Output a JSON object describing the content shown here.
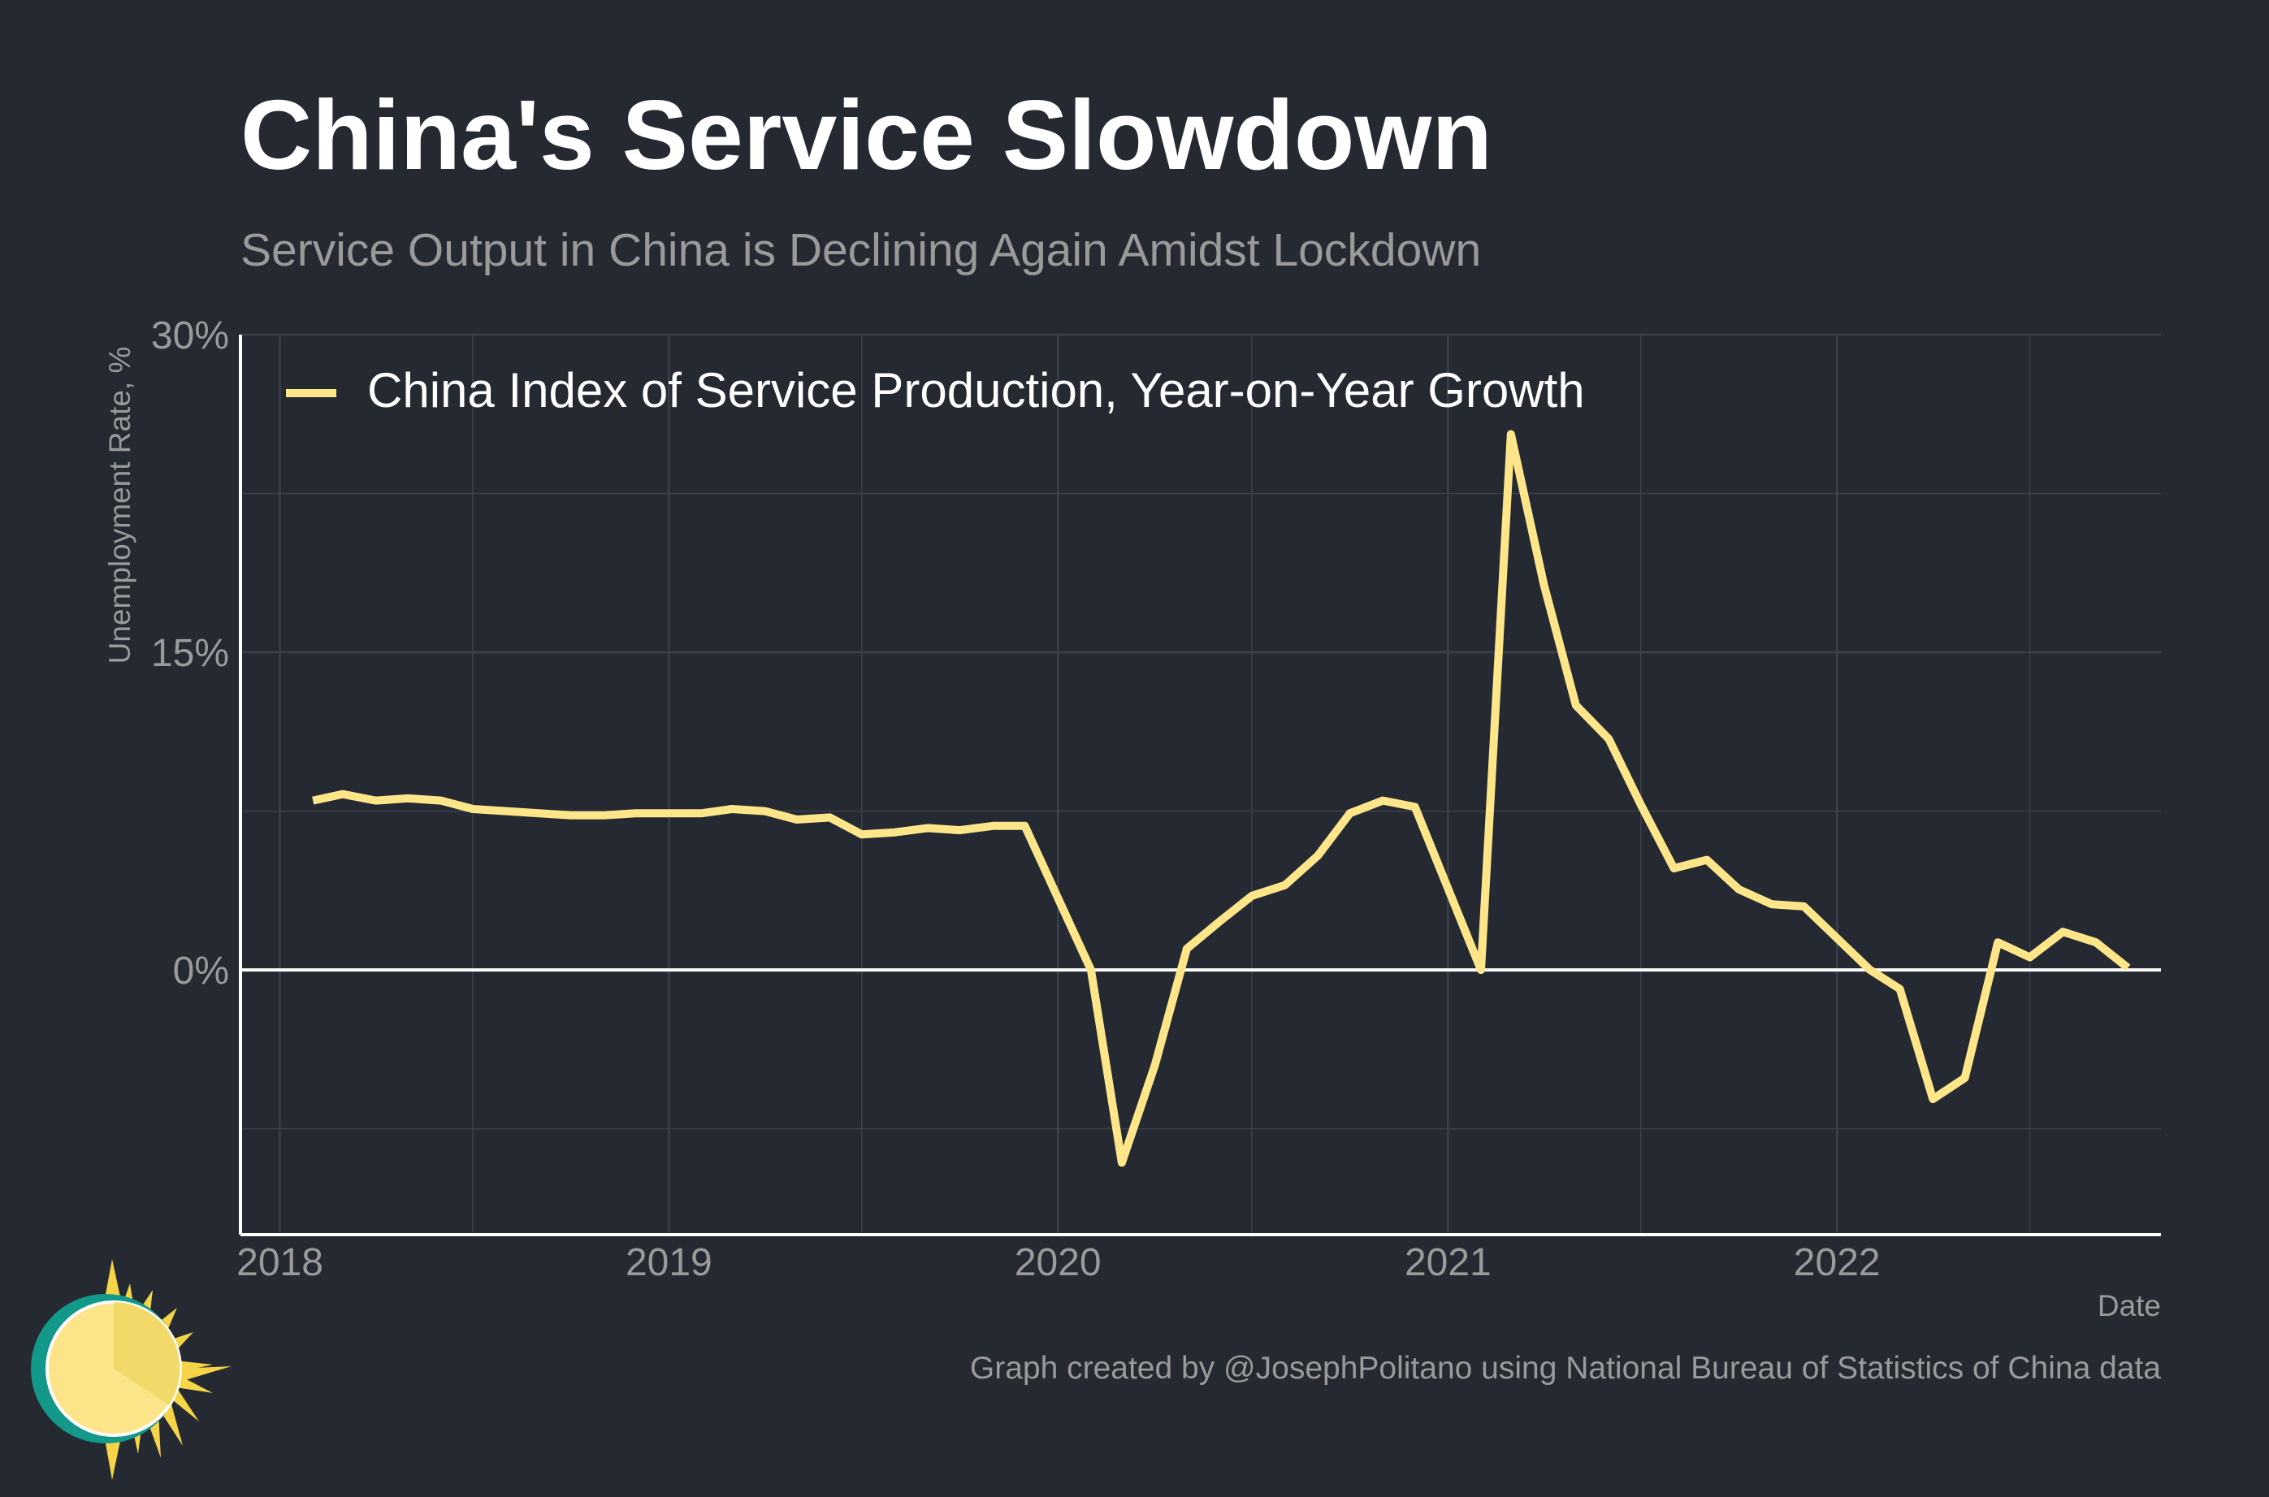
{
  "header": {
    "title": "China's Service Slowdown",
    "subtitle": "Service Output in China is Declining Again Amidst Lockdown"
  },
  "footer": {
    "caption": "Graph created by @JosephPolitano using National Bureau of Statistics of China data"
  },
  "colors": {
    "background": "#252932",
    "line": "#fde68a",
    "grid": "#3c414b",
    "axis": "#ffffff",
    "muted_text": "#9a9a9a",
    "logo_sun": "#fce588",
    "logo_rays": "#f5d547",
    "logo_ring": "#12998a"
  },
  "logo": {
    "icon": "sun-logo-icon"
  },
  "chart_data": {
    "type": "line",
    "title": "China's Service Slowdown",
    "subtitle": "Service Output in China is Declining Again Amidst Lockdown",
    "xlabel": "Date",
    "ylabel": "Unemployment Rate, %",
    "x_ticks": [
      "2018",
      "2019",
      "2020",
      "2021",
      "2022"
    ],
    "y_ticks": [
      "30%",
      "15%",
      "0%"
    ],
    "y_tick_values": [
      30,
      15,
      0
    ],
    "ylim": [
      -12.5,
      30
    ],
    "xlim": [
      "2017-11-25",
      "2022-11-01"
    ],
    "grid": true,
    "legend_position": "top-left",
    "series": [
      {
        "name": "China Index of Service Production, Year-on-Year Growth",
        "color": "#fde68a",
        "x": [
          "2018-02",
          "2018-03",
          "2018-04",
          "2018-05",
          "2018-06",
          "2018-07",
          "2018-08",
          "2018-09",
          "2018-10",
          "2018-11",
          "2018-12",
          "2019-01",
          "2019-02",
          "2019-03",
          "2019-04",
          "2019-05",
          "2019-06",
          "2019-07",
          "2019-08",
          "2019-09",
          "2019-10",
          "2019-11",
          "2019-12",
          "2020-02",
          "2020-03",
          "2020-04",
          "2020-05",
          "2020-06",
          "2020-07",
          "2020-08",
          "2020-09",
          "2020-10",
          "2020-11",
          "2020-12",
          "2021-02",
          "2021-03",
          "2021-04",
          "2021-05",
          "2021-06",
          "2021-07",
          "2021-08",
          "2021-09",
          "2021-10",
          "2021-11",
          "2021-12",
          "2022-02",
          "2022-03",
          "2022-04",
          "2022-05",
          "2022-06",
          "2022-07",
          "2022-08",
          "2022-09",
          "2022-10"
        ],
        "values": [
          8.0,
          8.3,
          8.0,
          8.1,
          8.0,
          7.6,
          7.5,
          7.4,
          7.3,
          7.3,
          7.4,
          7.4,
          7.4,
          7.6,
          7.5,
          7.1,
          7.2,
          6.4,
          6.5,
          6.7,
          6.6,
          6.8,
          6.8,
          0.0,
          -9.1,
          -4.5,
          1.0,
          2.3,
          3.5,
          4.0,
          5.4,
          7.4,
          8.0,
          7.7,
          0.0,
          25.3,
          18.2,
          12.5,
          10.9,
          7.8,
          4.8,
          5.2,
          3.8,
          3.1,
          3.0,
          0.0,
          -0.9,
          -6.1,
          -5.1,
          1.3,
          0.6,
          1.8,
          1.3,
          0.1
        ]
      }
    ]
  }
}
